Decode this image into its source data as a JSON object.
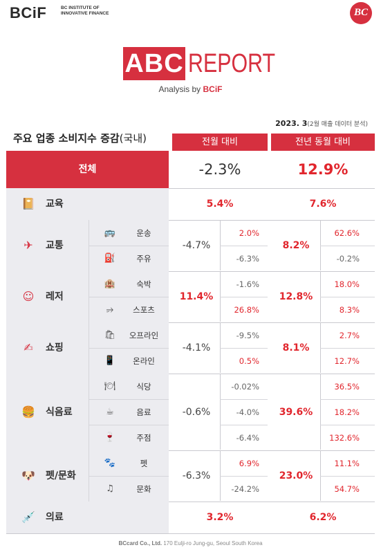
{
  "header": {
    "brand": "BCiF",
    "brand_sub": "BC INSTITUTE OF INNOVATIVE FINANCE",
    "badge": "BC",
    "abc": "ABC",
    "report": "REPORT",
    "analysis_prefix": "Analysis by ",
    "analysis_brand": "BCiF"
  },
  "date": {
    "main": "2023. 3",
    "note": "(2월 매출 데이터 분석)"
  },
  "table": {
    "title_main": "주요 업종 소비지수 증감",
    "title_paren": "(국내)",
    "col_mom": "전월 대비",
    "col_yoy": "전년 동월 대비",
    "total": {
      "label": "전체",
      "mom": "-2.3%",
      "yoy": "12.9%"
    },
    "categories": [
      {
        "name": "교육",
        "icon": "book-icon",
        "mom": "5.4%",
        "yoy": "7.6%",
        "subs": []
      },
      {
        "name": "교통",
        "icon": "plane-icon",
        "mom": "-4.7%",
        "yoy": "8.2%",
        "subs": [
          {
            "name": "운송",
            "icon": "bus-icon",
            "mom": "2.0%",
            "yoy": "62.6%"
          },
          {
            "name": "주유",
            "icon": "fuel-icon",
            "mom": "-6.3%",
            "yoy": "-0.2%"
          }
        ]
      },
      {
        "name": "레저",
        "icon": "smile-icon",
        "mom": "11.4%",
        "yoy": "12.8%",
        "subs": [
          {
            "name": "숙박",
            "icon": "hotel-icon",
            "mom": "-1.6%",
            "yoy": "18.0%"
          },
          {
            "name": "스포츠",
            "icon": "dumbbell-icon",
            "mom": "26.8%",
            "yoy": "8.3%"
          }
        ]
      },
      {
        "name": "쇼핑",
        "icon": "card-icon",
        "mom": "-4.1%",
        "yoy": "8.1%",
        "subs": [
          {
            "name": "오프라인",
            "icon": "bag-icon",
            "mom": "-9.5%",
            "yoy": "2.7%"
          },
          {
            "name": "온라인",
            "icon": "phone-icon",
            "mom": "0.5%",
            "yoy": "12.7%"
          }
        ]
      },
      {
        "name": "식음료",
        "icon": "burger-icon",
        "mom": "-0.6%",
        "yoy": "39.6%",
        "subs": [
          {
            "name": "식당",
            "icon": "plate-icon",
            "mom": "-0.02%",
            "yoy": "36.5%"
          },
          {
            "name": "음료",
            "icon": "cup-icon",
            "mom": "-4.0%",
            "yoy": "18.2%"
          },
          {
            "name": "주점",
            "icon": "glass-icon",
            "mom": "-6.4%",
            "yoy": "132.6%"
          }
        ]
      },
      {
        "name": "펫/문화",
        "icon": "dog-icon",
        "mom": "-6.3%",
        "yoy": "23.0%",
        "subs": [
          {
            "name": "펫",
            "icon": "paw-icon",
            "mom": "6.9%",
            "yoy": "11.1%"
          },
          {
            "name": "문화",
            "icon": "music-icon",
            "mom": "-24.2%",
            "yoy": "54.7%"
          }
        ]
      },
      {
        "name": "의료",
        "icon": "syringe-icon",
        "mom": "3.2%",
        "yoy": "6.2%",
        "subs": []
      }
    ]
  },
  "footer": {
    "company": "BCcard Co., Ltd.",
    "address": " 170 Eulji-ro Jung-gu, Seoul South Korea"
  },
  "colors": {
    "accent": "#d6303f",
    "value_red": "#e1262d"
  }
}
